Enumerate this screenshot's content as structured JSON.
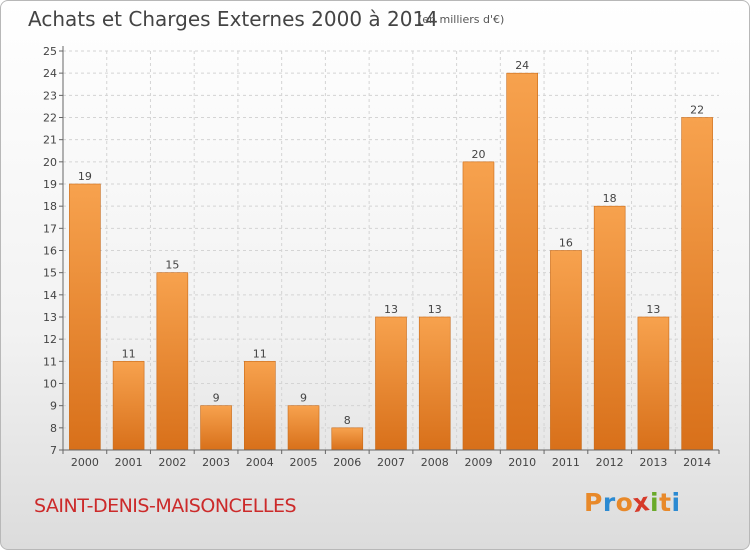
{
  "header": {
    "title": "Achats et Charges Externes 2000 à 2014",
    "subtitle": "(en milliers d'€)"
  },
  "footer": {
    "commune": "SAINT-DENIS-MAISONCELLES",
    "logo_letters": [
      "P",
      "r",
      "o",
      "x",
      "i",
      "t",
      "i"
    ],
    "logo_colors": [
      "#e8892a",
      "#2b8ad2",
      "#e8892a",
      "#d63a2a",
      "#6aaa2a",
      "#e8892a",
      "#2b8ad2"
    ]
  },
  "chart_data": {
    "type": "bar",
    "categories": [
      "2000",
      "2001",
      "2002",
      "2003",
      "2004",
      "2005",
      "2006",
      "2007",
      "2008",
      "2009",
      "2010",
      "2011",
      "2012",
      "2013",
      "2014"
    ],
    "values": [
      19,
      11,
      15,
      9,
      11,
      9,
      8,
      13,
      13,
      20,
      24,
      16,
      18,
      13,
      22
    ],
    "data_labels": [
      "19",
      "11",
      "15",
      "9",
      "11",
      "9",
      "8",
      "13",
      "13",
      "20",
      "24",
      "16",
      "18",
      "13",
      "22"
    ],
    "ylim": [
      7,
      25
    ],
    "yticks": [
      "7",
      "8",
      "9",
      "10",
      "11",
      "12",
      "13",
      "14",
      "15",
      "16",
      "17",
      "18",
      "19",
      "20",
      "21",
      "22",
      "23",
      "24",
      "25"
    ],
    "grid": true,
    "bar_color_top": "#f7a24e",
    "bar_color_bottom": "#d8701a"
  }
}
